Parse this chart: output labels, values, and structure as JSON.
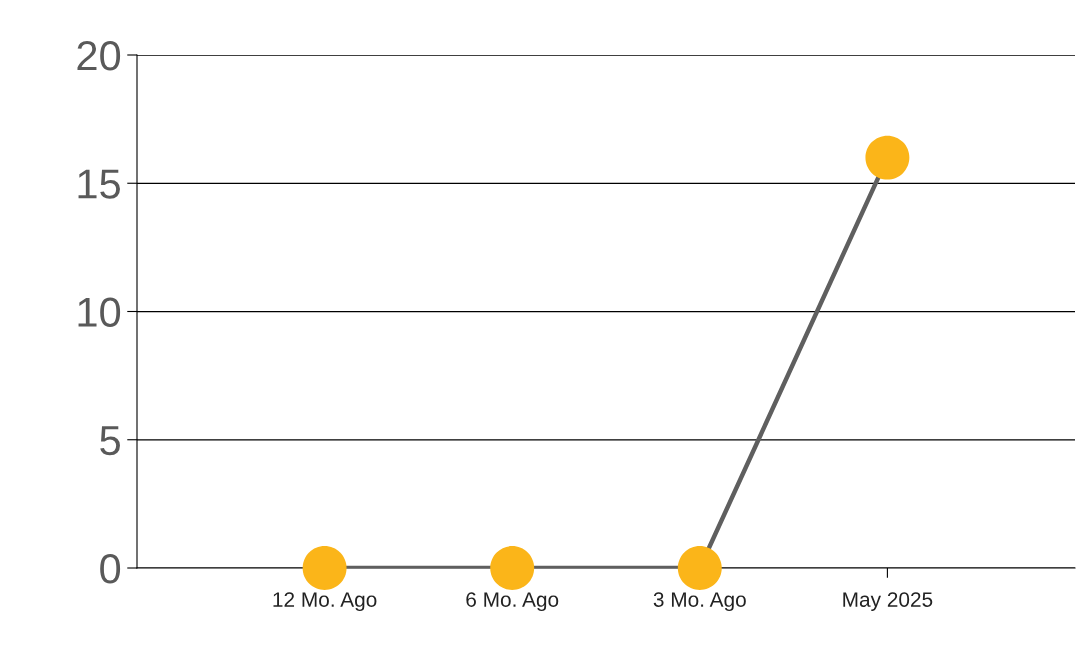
{
  "chart_data": {
    "type": "line",
    "categories": [
      "12 Mo. Ago",
      "6 Mo. Ago",
      "3 Mo. Ago",
      "May 2025"
    ],
    "series": [
      {
        "color": "#5f5f5f",
        "colors": [
          "#fbb519",
          "#fbb519",
          "#fbb519",
          "#fbb519"
        ],
        "values": [
          0,
          0,
          0,
          16
        ]
      }
    ],
    "ylim": [
      0,
      20
    ],
    "yticks": [
      0,
      5,
      10,
      15,
      20
    ],
    "grid": "y",
    "marker": "circle",
    "line_style": "solid"
  }
}
